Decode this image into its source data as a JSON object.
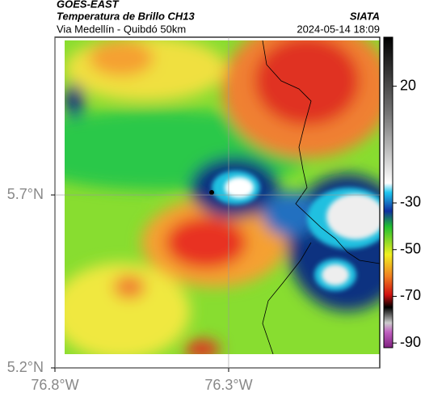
{
  "header": {
    "satellite": "GOES-EAST",
    "title": "Temperatura de Brillo CH13",
    "org": "SIATA",
    "subtitle": "Via Medellín - Quibdó 50km",
    "timestamp": "2024-05-14 18:09"
  },
  "map": {
    "xlim": [
      -76.8,
      -75.865
    ],
    "ylim": [
      5.2,
      6.156
    ],
    "xticks": [
      {
        "value": -76.8,
        "label": "76.8°W"
      },
      {
        "value": -76.3,
        "label": "76.3°W"
      }
    ],
    "yticks": [
      {
        "value": 5.2,
        "label": "5.2°N"
      },
      {
        "value": 5.7,
        "label": "5.7°N"
      }
    ],
    "grid": true
  },
  "colorbar": {
    "lim": [
      41,
      -92
    ],
    "ticks": [
      20,
      -30,
      -50,
      -70,
      -90
    ]
  }
}
